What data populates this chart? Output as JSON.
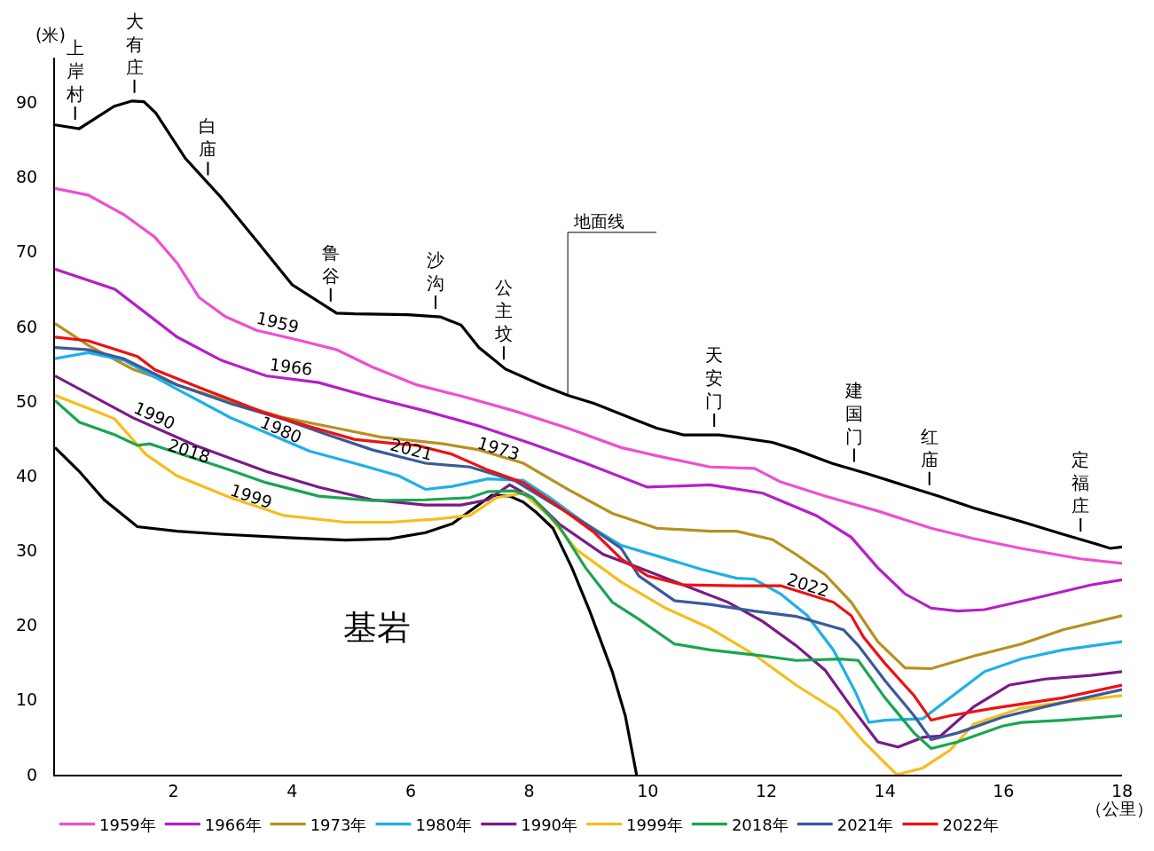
{
  "chart_data": {
    "type": "line",
    "ylabel": "(米)",
    "xlabel": "（公里）",
    "xlim": [
      0,
      18
    ],
    "ylim": [
      0,
      96
    ],
    "xticks": [
      2,
      4,
      6,
      8,
      10,
      12,
      14,
      16,
      18
    ],
    "yticks": [
      0,
      10,
      20,
      30,
      40,
      50,
      60,
      70,
      80,
      90
    ],
    "grid": false,
    "legend": "bottom",
    "marker": "none",
    "line_style": "solid",
    "series": [
      {
        "color": "#000000",
        "x": [
          0,
          0.41,
          1.0,
          1.3,
          1.5,
          1.7,
          2.2,
          2.8,
          3.4,
          4.0,
          4.75,
          5.05,
          5.95,
          6.5,
          6.85,
          7.15,
          7.6,
          8.2,
          8.65,
          9.1,
          9.7,
          10.15,
          10.6,
          11.2,
          11.5,
          12.1,
          12.5,
          13.1,
          13.7,
          14.3,
          14.9,
          15.5,
          16.3,
          17.0,
          17.6,
          17.8,
          18.0
        ],
        "values": [
          87.0,
          86.5,
          89.5,
          90.2,
          90.1,
          88.6,
          82.5,
          77.3,
          71.5,
          65.6,
          61.8,
          61.7,
          61.6,
          61.3,
          60.2,
          57.2,
          54.3,
          52.2,
          50.8,
          49.7,
          47.8,
          46.4,
          45.5,
          45.5,
          45.2,
          44.5,
          43.5,
          41.7,
          40.3,
          38.8,
          37.3,
          35.7,
          33.9,
          32.2,
          30.8,
          30.3,
          30.5
        ]
      },
      {
        "color": "#000000",
        "x": [
          0,
          0.41,
          0.83,
          1.39,
          2.06,
          2.8,
          4.0,
          4.9,
          5.65,
          6.25,
          6.7,
          7.07,
          7.37,
          7.67,
          7.9,
          8.12,
          8.4,
          8.72,
          9.02,
          9.4,
          9.62,
          9.81
        ],
        "values": [
          43.8,
          40.6,
          36.8,
          33.2,
          32.6,
          32.2,
          31.7,
          31.4,
          31.6,
          32.4,
          33.6,
          35.7,
          37.4,
          37.3,
          36.5,
          35.1,
          33.0,
          27.7,
          21.9,
          13.8,
          7.9,
          0
        ]
      },
      {
        "name": "1959年",
        "color": "#ee4fcf",
        "x": [
          0,
          0.56,
          1.16,
          1.68,
          2.06,
          2.43,
          2.88,
          3.4,
          4.15,
          4.75,
          5.35,
          6.1,
          6.85,
          7.75,
          8.65,
          9.55,
          10.15,
          11.05,
          11.8,
          12.24,
          12.99,
          13.88,
          14.78,
          15.5,
          16.3,
          17.3,
          18
        ],
        "values": [
          78.5,
          77.6,
          75.0,
          72.0,
          68.5,
          63.9,
          61.3,
          59.5,
          58.1,
          56.9,
          54.6,
          52.2,
          50.7,
          48.7,
          46.4,
          43.8,
          42.7,
          41.2,
          41.0,
          39.2,
          37.3,
          35.3,
          33.0,
          31.6,
          30.3,
          28.9,
          28.3
        ]
      },
      {
        "name": "1966年",
        "color": "#b51fc9",
        "x": [
          0,
          1.01,
          2.06,
          2.8,
          3.56,
          4.45,
          5.35,
          6.25,
          7.15,
          8.05,
          8.95,
          9.99,
          11.05,
          11.94,
          12.84,
          13.43,
          13.88,
          14.34,
          14.78,
          15.23,
          15.68,
          16.57,
          17.47,
          18
        ],
        "values": [
          67.7,
          65.0,
          58.6,
          55.5,
          53.4,
          52.5,
          50.5,
          48.7,
          46.7,
          44.3,
          41.7,
          38.5,
          38.8,
          37.7,
          34.7,
          31.8,
          27.7,
          24.2,
          22.3,
          21.9,
          22.1,
          23.7,
          25.4,
          26.1
        ]
      },
      {
        "name": "1973年",
        "color": "#b8901e",
        "x": [
          0,
          0.56,
          1.31,
          2.06,
          2.96,
          3.86,
          4.75,
          5.5,
          6.55,
          7.15,
          7.9,
          8.65,
          9.4,
          10.15,
          11.05,
          11.5,
          12.1,
          12.5,
          12.99,
          13.43,
          13.88,
          14.34,
          14.78,
          15.5,
          16.3,
          17.0,
          18
        ],
        "values": [
          60.4,
          57.5,
          54.3,
          52.2,
          49.9,
          47.8,
          46.4,
          45.2,
          44.3,
          43.5,
          41.7,
          38.2,
          35.0,
          33.0,
          32.6,
          32.6,
          31.5,
          29.5,
          26.8,
          23.1,
          17.8,
          14.3,
          14.2,
          15.9,
          17.5,
          19.4,
          21.3
        ]
      },
      {
        "name": "1980年",
        "color": "#1eb0e8",
        "x": [
          0,
          0.56,
          1.16,
          2.06,
          2.96,
          3.56,
          4.3,
          5.05,
          5.8,
          6.25,
          6.7,
          7.3,
          7.9,
          8.35,
          8.95,
          9.55,
          10.15,
          10.9,
          11.5,
          11.79,
          12.24,
          12.69,
          13.13,
          13.5,
          13.73,
          14.0,
          14.64,
          15.1,
          15.68,
          16.3,
          17.0,
          18
        ],
        "values": [
          55.7,
          56.5,
          55.5,
          51.6,
          47.8,
          45.8,
          43.3,
          41.7,
          40.0,
          38.2,
          38.6,
          39.6,
          39.4,
          37.1,
          33.6,
          30.7,
          29.3,
          27.5,
          26.3,
          26.2,
          24.2,
          21.3,
          16.7,
          11.1,
          7.0,
          7.3,
          7.5,
          10.3,
          13.8,
          15.5,
          16.7,
          17.8
        ]
      },
      {
        "name": "1990年",
        "color": "#7a1a86",
        "x": [
          0,
          1.31,
          2.36,
          3.56,
          4.45,
          5.35,
          6.25,
          6.85,
          7.3,
          7.67,
          8.05,
          8.5,
          9.25,
          9.85,
          10.6,
          11.35,
          11.94,
          12.5,
          12.99,
          13.43,
          13.88,
          14.22,
          14.64,
          14.94,
          15.5,
          16.1,
          16.7,
          17.47,
          18
        ],
        "values": [
          53.4,
          47.8,
          44.1,
          40.6,
          38.5,
          36.8,
          36.1,
          36.1,
          36.8,
          38.8,
          37.1,
          33.6,
          29.5,
          27.7,
          25.4,
          23.1,
          20.5,
          17.3,
          14.0,
          9.1,
          4.4,
          3.7,
          5.0,
          5.2,
          9.1,
          12.0,
          12.8,
          13.3,
          13.8
        ]
      },
      {
        "name": "1999年",
        "color": "#f5bd1f",
        "x": [
          0,
          0.87,
          1.01,
          1.53,
          2.06,
          2.96,
          3.86,
          4.9,
          5.65,
          6.4,
          7.0,
          7.45,
          7.9,
          8.35,
          8.8,
          9.55,
          10.3,
          11.05,
          11.79,
          12.5,
          13.2,
          13.64,
          14.2,
          14.64,
          15.1,
          15.5,
          16.3,
          17.0,
          18
        ],
        "values": [
          50.8,
          48.1,
          47.6,
          42.9,
          40.0,
          37.1,
          34.7,
          33.8,
          33.8,
          34.2,
          34.7,
          37.1,
          37.7,
          34.5,
          30.1,
          25.8,
          22.3,
          19.6,
          16.1,
          12.0,
          8.5,
          4.4,
          0,
          0.9,
          3.3,
          6.8,
          8.9,
          9.7,
          10.6
        ]
      },
      {
        "name": "2018年",
        "color": "#1aa550",
        "x": [
          0,
          0.41,
          1.01,
          1.39,
          1.6,
          2.06,
          2.8,
          3.56,
          4.45,
          5.35,
          6.25,
          7.0,
          7.3,
          7.75,
          8.05,
          8.5,
          8.95,
          9.4,
          9.85,
          10.45,
          11.05,
          11.94,
          12.5,
          13.25,
          13.55,
          14.0,
          14.49,
          14.78,
          15.23,
          15.98,
          16.3,
          17.0,
          18
        ],
        "values": [
          50.1,
          47.2,
          45.5,
          44.1,
          44.3,
          43.1,
          41.2,
          39.1,
          37.3,
          36.7,
          36.8,
          37.1,
          37.9,
          38.0,
          37.1,
          33.3,
          27.7,
          23.1,
          20.8,
          17.5,
          16.7,
          15.9,
          15.3,
          15.5,
          15.3,
          10.3,
          5.6,
          3.5,
          4.4,
          6.5,
          7.0,
          7.3,
          7.9
        ]
      },
      {
        "name": "2021年",
        "color": "#3a5a99",
        "x": [
          0,
          0.56,
          1.16,
          2.06,
          2.96,
          3.86,
          4.6,
          5.35,
          6.25,
          7.0,
          7.75,
          8.35,
          8.95,
          9.55,
          9.85,
          10.45,
          11.05,
          11.79,
          12.5,
          13.3,
          13.55,
          14.0,
          14.49,
          14.78,
          15.23,
          15.98,
          16.7,
          18
        ],
        "values": [
          57.2,
          56.9,
          55.7,
          52.2,
          49.7,
          47.6,
          45.5,
          43.5,
          41.7,
          41.2,
          39.4,
          36.5,
          33.6,
          30.3,
          26.6,
          23.3,
          22.8,
          21.9,
          21.2,
          19.4,
          17.3,
          12.6,
          7.9,
          4.7,
          5.6,
          7.7,
          9.1,
          11.4
        ]
      },
      {
        "name": "2022年",
        "color": "#ee1111",
        "x": [
          0,
          0.56,
          1.39,
          1.69,
          2.51,
          3.56,
          4.3,
          5.05,
          5.65,
          6.1,
          6.7,
          7.3,
          7.9,
          8.5,
          9.1,
          9.55,
          10.0,
          10.6,
          11.5,
          12.24,
          13.13,
          13.43,
          13.64,
          14.0,
          14.49,
          14.78,
          15.1,
          15.83,
          17.0,
          18
        ],
        "values": [
          58.6,
          58.1,
          56.0,
          54.2,
          51.6,
          48.4,
          46.6,
          44.9,
          44.4,
          44.1,
          42.9,
          40.8,
          39.1,
          35.9,
          32.4,
          28.9,
          26.6,
          25.4,
          25.3,
          25.3,
          23.1,
          21.3,
          18.4,
          14.9,
          10.6,
          7.3,
          7.9,
          8.9,
          10.3,
          12.0
        ]
      }
    ],
    "annotations": [
      {
        "text": "上岸村",
        "x": 0.34,
        "y": 86.6
      },
      {
        "text": "大有庄",
        "x": 1.34,
        "y": 90.2
      },
      {
        "text": "白庙",
        "x": 2.58,
        "y": 79.2
      },
      {
        "text": "鲁谷",
        "x": 4.65,
        "y": 62.3
      },
      {
        "text": "沙沟",
        "x": 6.42,
        "y": 61.3
      },
      {
        "text": "公主坟",
        "x": 7.57,
        "y": 54.5
      },
      {
        "text": "天安门",
        "x": 11.12,
        "y": 45.5
      },
      {
        "text": "建国门",
        "x": 13.48,
        "y": 40.8
      },
      {
        "text": "红庙",
        "x": 14.75,
        "y": 37.7
      },
      {
        "text": "定福庄",
        "x": 17.3,
        "y": 31.5
      },
      {
        "text": "地面线",
        "x": 8.65,
        "y": 50.8
      },
      {
        "text": "1959",
        "x": 3.8,
        "y": 58.9
      },
      {
        "text": "1966",
        "x": 4.0,
        "y": 53.0
      },
      {
        "text": "1990",
        "x": 1.76,
        "y": 46.4
      },
      {
        "text": "2018",
        "x": 2.33,
        "y": 41.7
      },
      {
        "text": "1999",
        "x": 3.38,
        "y": 35.6
      },
      {
        "text": "1980",
        "x": 3.9,
        "y": 44.6
      },
      {
        "text": "2021",
        "x": 6.06,
        "y": 42.0
      },
      {
        "text": "1973",
        "x": 7.54,
        "y": 42.1
      },
      {
        "text": "2022",
        "x": 12.76,
        "y": 23.8
      },
      "基岩"
    ]
  }
}
